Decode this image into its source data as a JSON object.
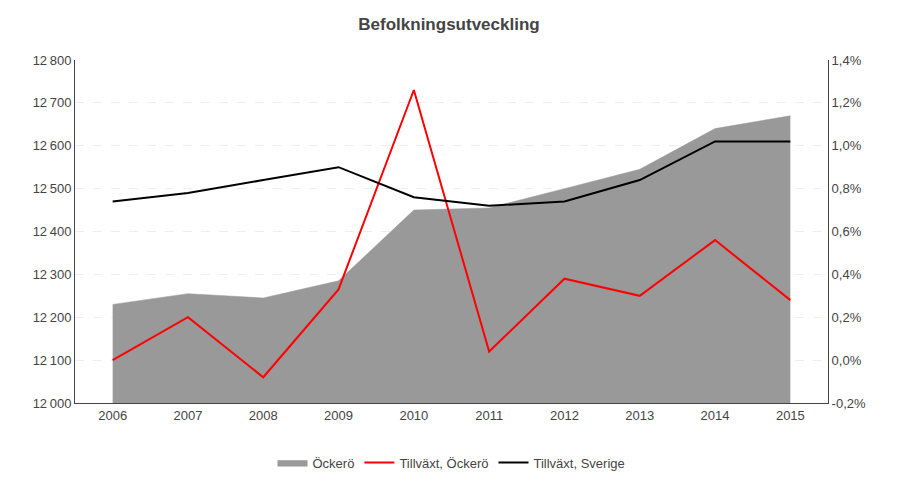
{
  "chart_data": {
    "type": "line",
    "title": "Befolkningsutveckling",
    "x": [
      2006,
      2007,
      2008,
      2009,
      2010,
      2011,
      2012,
      2013,
      2014,
      2015
    ],
    "xlim": [
      2005.5,
      2015.5
    ],
    "xticks": [
      2006,
      2007,
      2008,
      2009,
      2010,
      2011,
      2012,
      2013,
      2014,
      2015
    ],
    "ylim": [
      12000,
      12800
    ],
    "yticks": [
      {
        "value": 12000,
        "label": "12 000"
      },
      {
        "value": 12100,
        "label": "12 100"
      },
      {
        "value": 12200,
        "label": "12 200"
      },
      {
        "value": 12300,
        "label": "12 300"
      },
      {
        "value": 12400,
        "label": "12 400"
      },
      {
        "value": 12500,
        "label": "12 500"
      },
      {
        "value": 12600,
        "label": "12 600"
      },
      {
        "value": 12700,
        "label": "12 700"
      },
      {
        "value": 12800,
        "label": "12 800"
      }
    ],
    "y2lim": [
      -0.2,
      1.4
    ],
    "y2ticks": [
      {
        "value": -0.2,
        "label": "-0,2%"
      },
      {
        "value": 0.0,
        "label": "0,0%"
      },
      {
        "value": 0.2,
        "label": "0,2%"
      },
      {
        "value": 0.4,
        "label": "0,4%"
      },
      {
        "value": 0.6,
        "label": "0,6%"
      },
      {
        "value": 0.8,
        "label": "0,8%"
      },
      {
        "value": 1.0,
        "label": "1,0%"
      },
      {
        "value": 1.2,
        "label": "1,2%"
      },
      {
        "value": 1.4,
        "label": "1,4%"
      }
    ],
    "grid": true,
    "legend": "bottom",
    "series": [
      {
        "name": "Öckerö",
        "type": "area",
        "color": "#999999",
        "values": [
          12230,
          12255,
          12245,
          12285,
          12450,
          12455,
          12500,
          12545,
          12640,
          12670
        ]
      },
      {
        "name": "Tillväxt, Öckerö",
        "type": "line",
        "color": "#FF0000",
        "axis": "y2",
        "values": [
          0.0,
          0.2,
          -0.08,
          0.33,
          1.26,
          0.04,
          0.38,
          0.3,
          0.56,
          0.28
        ]
      },
      {
        "name": "Tillväxt, Sverige",
        "type": "line",
        "color": "#000000",
        "axis": "y2",
        "values": [
          0.74,
          0.78,
          0.84,
          0.9,
          0.76,
          0.72,
          0.74,
          0.84,
          1.02,
          1.02
        ]
      }
    ]
  }
}
